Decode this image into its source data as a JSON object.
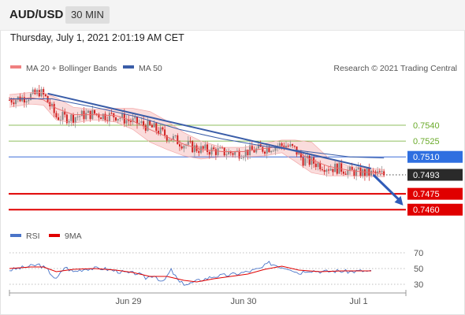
{
  "header": {
    "symbol": "AUD/USD",
    "timeframe": "30 MIN",
    "datetime": "Thursday, July 1, 2021 2:01:19 AM CET"
  },
  "legend": {
    "ma20": {
      "label": "MA 20 + Bollinger Bands",
      "color": "#f08080"
    },
    "ma50": {
      "label": "MA 50",
      "color": "#3a5da8"
    },
    "rsi": {
      "label": "RSI",
      "color": "#4a74c8"
    },
    "rsi_ma": {
      "label": "9MA",
      "color": "#e00000"
    }
  },
  "watermark": "Research © 2021 Trading Central",
  "colors": {
    "up": "#888888",
    "down": "#d02020",
    "trend": "#3a5da8",
    "resistance": "#6aaa2a",
    "support": "#e00000"
  },
  "chart_data": [
    {
      "type": "candlestick",
      "ylim": [
        0.7446,
        0.7587
      ],
      "levels": [
        {
          "value": "0.7540",
          "kind": "resistance"
        },
        {
          "value": "0.7525",
          "kind": "resistance"
        },
        {
          "value": "0.7510",
          "kind": "pivot"
        },
        {
          "value": "0.7493",
          "kind": "last"
        },
        {
          "value": "0.7475",
          "kind": "support"
        },
        {
          "value": "0.7460",
          "kind": "support"
        }
      ],
      "x_ticks": [
        "Jun 29",
        "Jun 30",
        "Jul 1"
      ],
      "path": [
        [
          0,
          0.7564
        ],
        [
          6,
          0.7566
        ],
        [
          12,
          0.7569
        ],
        [
          14,
          0.7572
        ],
        [
          17,
          0.7566
        ],
        [
          22,
          0.7548
        ],
        [
          28,
          0.7547
        ],
        [
          33,
          0.7549
        ],
        [
          40,
          0.7551
        ],
        [
          45,
          0.7549
        ],
        [
          50,
          0.7549
        ],
        [
          55,
          0.7545
        ],
        [
          62,
          0.7541
        ],
        [
          68,
          0.7537
        ],
        [
          74,
          0.753
        ],
        [
          80,
          0.7524
        ],
        [
          86,
          0.7519
        ],
        [
          90,
          0.7517
        ],
        [
          96,
          0.7516
        ],
        [
          102,
          0.7514
        ],
        [
          108,
          0.7514
        ],
        [
          114,
          0.7516
        ],
        [
          120,
          0.7518
        ],
        [
          126,
          0.7521
        ],
        [
          130,
          0.7521
        ],
        [
          134,
          0.7517
        ],
        [
          138,
          0.7507
        ],
        [
          144,
          0.7504
        ],
        [
          150,
          0.75
        ],
        [
          156,
          0.7499
        ],
        [
          160,
          0.7496
        ],
        [
          166,
          0.7495
        ],
        [
          170,
          0.7494
        ],
        [
          176,
          0.7493
        ]
      ],
      "ma20": [
        [
          0,
          0.7564
        ],
        [
          10,
          0.7566
        ],
        [
          16,
          0.7564
        ],
        [
          22,
          0.7556
        ],
        [
          30,
          0.755
        ],
        [
          40,
          0.755
        ],
        [
          50,
          0.7549
        ],
        [
          58,
          0.7544
        ],
        [
          66,
          0.7536
        ],
        [
          74,
          0.7529
        ],
        [
          82,
          0.7522
        ],
        [
          90,
          0.7517
        ],
        [
          100,
          0.7515
        ],
        [
          110,
          0.7515
        ],
        [
          120,
          0.7518
        ],
        [
          128,
          0.752
        ],
        [
          134,
          0.7516
        ],
        [
          142,
          0.7507
        ],
        [
          150,
          0.7501
        ],
        [
          160,
          0.7497
        ],
        [
          176,
          0.7494
        ]
      ],
      "bb_upper": [
        [
          0,
          0.7569
        ],
        [
          10,
          0.7571
        ],
        [
          16,
          0.7571
        ],
        [
          22,
          0.7566
        ],
        [
          30,
          0.7557
        ],
        [
          40,
          0.7555
        ],
        [
          50,
          0.7556
        ],
        [
          58,
          0.7556
        ],
        [
          66,
          0.7553
        ],
        [
          74,
          0.7544
        ],
        [
          82,
          0.7533
        ],
        [
          90,
          0.7525
        ],
        [
          100,
          0.7519
        ],
        [
          110,
          0.7519
        ],
        [
          120,
          0.7523
        ],
        [
          128,
          0.7526
        ],
        [
          134,
          0.7526
        ],
        [
          142,
          0.7524
        ],
        [
          150,
          0.7509
        ],
        [
          160,
          0.7501
        ],
        [
          176,
          0.7498
        ]
      ],
      "bb_lower": [
        [
          0,
          0.7557
        ],
        [
          10,
          0.756
        ],
        [
          16,
          0.7559
        ],
        [
          22,
          0.7545
        ],
        [
          30,
          0.7542
        ],
        [
          40,
          0.7545
        ],
        [
          50,
          0.7543
        ],
        [
          58,
          0.7536
        ],
        [
          66,
          0.7524
        ],
        [
          74,
          0.7517
        ],
        [
          82,
          0.7511
        ],
        [
          90,
          0.7508
        ],
        [
          100,
          0.751
        ],
        [
          110,
          0.751
        ],
        [
          120,
          0.7511
        ],
        [
          128,
          0.7514
        ],
        [
          134,
          0.7506
        ],
        [
          142,
          0.7495
        ],
        [
          150,
          0.7492
        ],
        [
          160,
          0.7492
        ],
        [
          176,
          0.7491
        ]
      ],
      "ma50": [
        [
          0,
          0.7565
        ],
        [
          20,
          0.7565
        ],
        [
          40,
          0.7557
        ],
        [
          60,
          0.7548
        ],
        [
          80,
          0.7536
        ],
        [
          100,
          0.7527
        ],
        [
          120,
          0.752
        ],
        [
          140,
          0.7515
        ],
        [
          160,
          0.751
        ],
        [
          176,
          0.7509
        ]
      ],
      "trendline": [
        [
          18,
          0.757
        ],
        [
          170,
          0.7499
        ]
      ],
      "projection": [
        [
          171,
          0.7493
        ],
        [
          185,
          0.7464
        ]
      ]
    },
    {
      "type": "line",
      "ylim": [
        20,
        80
      ],
      "y_ticks": [
        "70",
        "50",
        "30"
      ],
      "rsi": [
        [
          0,
          48
        ],
        [
          8,
          52
        ],
        [
          14,
          55
        ],
        [
          18,
          48
        ],
        [
          22,
          36
        ],
        [
          26,
          52
        ],
        [
          30,
          46
        ],
        [
          36,
          50
        ],
        [
          44,
          50
        ],
        [
          50,
          47
        ],
        [
          56,
          44
        ],
        [
          60,
          44
        ],
        [
          64,
          38
        ],
        [
          68,
          42
        ],
        [
          72,
          32
        ],
        [
          76,
          48
        ],
        [
          80,
          32
        ],
        [
          84,
          30
        ],
        [
          88,
          34
        ],
        [
          96,
          40
        ],
        [
          104,
          42
        ],
        [
          112,
          46
        ],
        [
          118,
          50
        ],
        [
          122,
          57
        ],
        [
          128,
          52
        ],
        [
          132,
          50
        ],
        [
          136,
          44
        ],
        [
          140,
          48
        ],
        [
          148,
          46
        ],
        [
          154,
          47
        ],
        [
          160,
          46
        ],
        [
          166,
          47
        ],
        [
          170,
          46
        ]
      ],
      "rsi_ma": [
        [
          0,
          50
        ],
        [
          10,
          52
        ],
        [
          16,
          52
        ],
        [
          22,
          46
        ],
        [
          30,
          49
        ],
        [
          40,
          50
        ],
        [
          50,
          48
        ],
        [
          58,
          45
        ],
        [
          66,
          40
        ],
        [
          74,
          40
        ],
        [
          82,
          35
        ],
        [
          88,
          33
        ],
        [
          96,
          37
        ],
        [
          104,
          40
        ],
        [
          112,
          43
        ],
        [
          120,
          49
        ],
        [
          128,
          53
        ],
        [
          136,
          48
        ],
        [
          146,
          46
        ],
        [
          156,
          47
        ],
        [
          170,
          47
        ]
      ]
    }
  ]
}
